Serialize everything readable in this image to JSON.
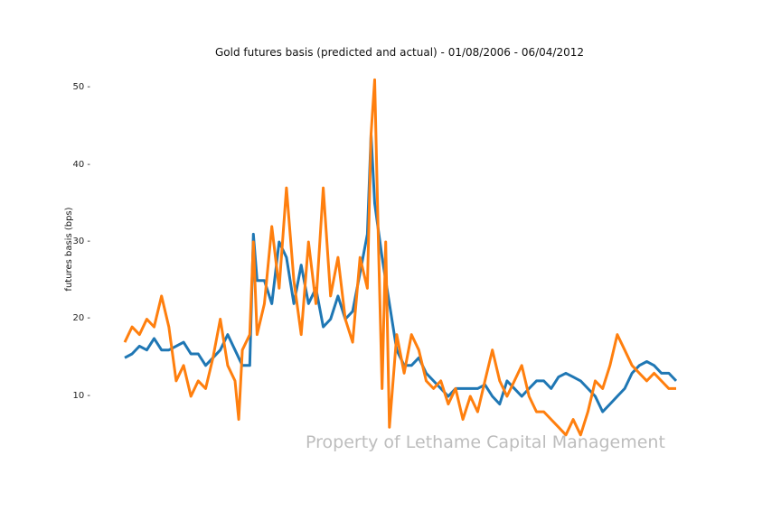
{
  "chart_data": {
    "type": "line",
    "title": "Gold futures basis (predicted and actual) - 01/08/2006 - 06/04/2012",
    "xlabel": "",
    "ylabel": "futures basis (bps)",
    "ylim": [
      5,
      52
    ],
    "yticks": [
      10,
      20,
      30,
      40,
      50
    ],
    "grid": false,
    "legend": null,
    "x_range": [
      "01/08/2006",
      "06/04/2012"
    ],
    "series": [
      {
        "name": "predicted",
        "color": "#1f77b4",
        "points": [
          [
            0,
            15
          ],
          [
            2,
            15.5
          ],
          [
            4,
            16.5
          ],
          [
            6,
            16
          ],
          [
            8,
            17.5
          ],
          [
            10,
            16
          ],
          [
            12,
            16
          ],
          [
            14,
            16.5
          ],
          [
            16,
            17
          ],
          [
            18,
            15.5
          ],
          [
            20,
            15.5
          ],
          [
            22,
            14
          ],
          [
            24,
            15
          ],
          [
            26,
            16
          ],
          [
            28,
            18
          ],
          [
            30,
            16
          ],
          [
            32,
            14
          ],
          [
            34,
            14
          ],
          [
            35,
            31
          ],
          [
            36,
            25
          ],
          [
            38,
            25
          ],
          [
            40,
            22
          ],
          [
            42,
            30
          ],
          [
            44,
            28
          ],
          [
            46,
            22
          ],
          [
            48,
            27
          ],
          [
            50,
            22
          ],
          [
            52,
            24
          ],
          [
            54,
            19
          ],
          [
            56,
            20
          ],
          [
            58,
            23
          ],
          [
            60,
            20
          ],
          [
            62,
            21
          ],
          [
            64,
            26
          ],
          [
            66,
            31
          ],
          [
            67,
            44
          ],
          [
            68,
            35
          ],
          [
            70,
            28
          ],
          [
            72,
            22
          ],
          [
            74,
            16
          ],
          [
            76,
            14
          ],
          [
            78,
            14
          ],
          [
            80,
            15
          ],
          [
            82,
            13
          ],
          [
            84,
            12
          ],
          [
            86,
            11
          ],
          [
            88,
            10
          ],
          [
            90,
            11
          ],
          [
            92,
            11
          ],
          [
            94,
            11
          ],
          [
            96,
            11
          ],
          [
            98,
            11.5
          ],
          [
            100,
            10
          ],
          [
            102,
            9
          ],
          [
            104,
            12
          ],
          [
            106,
            11
          ],
          [
            108,
            10
          ],
          [
            110,
            11
          ],
          [
            112,
            12
          ],
          [
            114,
            12
          ],
          [
            116,
            11
          ],
          [
            118,
            12.5
          ],
          [
            120,
            13
          ],
          [
            122,
            12.5
          ],
          [
            124,
            12
          ],
          [
            126,
            11
          ],
          [
            128,
            10
          ],
          [
            130,
            8
          ],
          [
            132,
            9
          ],
          [
            134,
            10
          ],
          [
            136,
            11
          ],
          [
            138,
            13
          ],
          [
            140,
            14
          ],
          [
            142,
            14.5
          ],
          [
            144,
            14
          ],
          [
            146,
            13
          ],
          [
            148,
            13
          ],
          [
            150,
            12
          ]
        ]
      },
      {
        "name": "actual",
        "color": "#ff7f0e",
        "points": [
          [
            0,
            17
          ],
          [
            2,
            19
          ],
          [
            4,
            18
          ],
          [
            6,
            20
          ],
          [
            8,
            19
          ],
          [
            10,
            23
          ],
          [
            12,
            19
          ],
          [
            14,
            12
          ],
          [
            16,
            14
          ],
          [
            18,
            10
          ],
          [
            20,
            12
          ],
          [
            22,
            11
          ],
          [
            24,
            15
          ],
          [
            26,
            20
          ],
          [
            28,
            14
          ],
          [
            30,
            12
          ],
          [
            31,
            7
          ],
          [
            32,
            16
          ],
          [
            34,
            18
          ],
          [
            35,
            30
          ],
          [
            36,
            18
          ],
          [
            38,
            22
          ],
          [
            40,
            32
          ],
          [
            42,
            24
          ],
          [
            44,
            37
          ],
          [
            46,
            25
          ],
          [
            48,
            18
          ],
          [
            50,
            30
          ],
          [
            52,
            22
          ],
          [
            54,
            37
          ],
          [
            56,
            23
          ],
          [
            58,
            28
          ],
          [
            60,
            20
          ],
          [
            62,
            17
          ],
          [
            64,
            28
          ],
          [
            66,
            24
          ],
          [
            67,
            44
          ],
          [
            68,
            51
          ],
          [
            69,
            30
          ],
          [
            70,
            11
          ],
          [
            71,
            30
          ],
          [
            72,
            6
          ],
          [
            74,
            18
          ],
          [
            76,
            13
          ],
          [
            78,
            18
          ],
          [
            80,
            16
          ],
          [
            82,
            12
          ],
          [
            84,
            11
          ],
          [
            86,
            12
          ],
          [
            88,
            9
          ],
          [
            90,
            11
          ],
          [
            92,
            7
          ],
          [
            94,
            10
          ],
          [
            96,
            8
          ],
          [
            98,
            12
          ],
          [
            100,
            16
          ],
          [
            102,
            12
          ],
          [
            104,
            10
          ],
          [
            106,
            12
          ],
          [
            108,
            14
          ],
          [
            110,
            10
          ],
          [
            112,
            8
          ],
          [
            114,
            8
          ],
          [
            116,
            7
          ],
          [
            118,
            6
          ],
          [
            120,
            5
          ],
          [
            122,
            7
          ],
          [
            124,
            5
          ],
          [
            126,
            8
          ],
          [
            128,
            12
          ],
          [
            130,
            11
          ],
          [
            132,
            14
          ],
          [
            134,
            18
          ],
          [
            136,
            16
          ],
          [
            138,
            14
          ],
          [
            140,
            13
          ],
          [
            142,
            12
          ],
          [
            144,
            13
          ],
          [
            146,
            12
          ],
          [
            148,
            11
          ],
          [
            150,
            11
          ]
        ]
      }
    ]
  },
  "watermark": "Property of Lethame Capital Management",
  "ticks": [
    "10",
    "20",
    "30",
    "40",
    "50"
  ]
}
